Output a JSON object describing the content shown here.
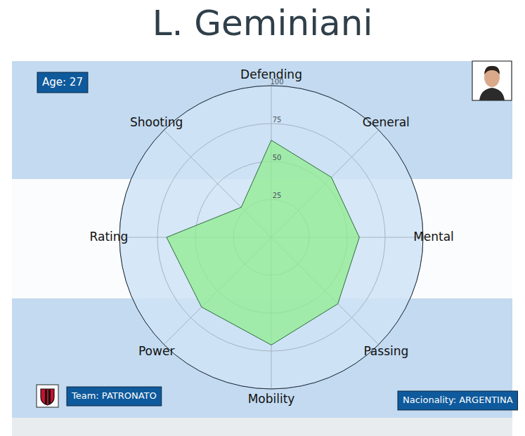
{
  "chart_data": {
    "type": "radar",
    "title": "L. Geminiani",
    "categories": [
      "Defending",
      "General",
      "Mental",
      "Passing",
      "Mobility",
      "Power",
      "Rating",
      "Shooting"
    ],
    "values": [
      64,
      56,
      58,
      62,
      71,
      65,
      69,
      28
    ],
    "color": "#90ee90",
    "ylim": [
      0,
      100
    ],
    "yticks": [
      25,
      50,
      75,
      100
    ],
    "grid": true,
    "annotations": [
      "Age: 27",
      "Team: PATRONATO",
      "Nacionality: ARGENTINA"
    ]
  }
}
